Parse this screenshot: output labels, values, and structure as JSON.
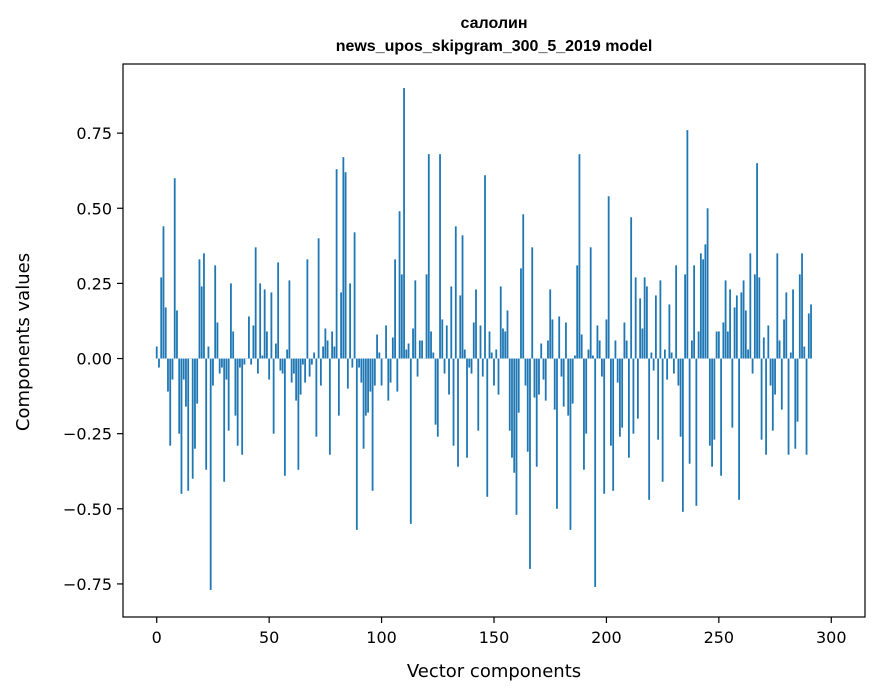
{
  "chart_data": {
    "type": "bar",
    "title": "салолин",
    "subtitle": "news_upos_skipgram_300_5_2019 model",
    "xlabel": "Vector components",
    "ylabel": "Components values",
    "xlim": [
      -15,
      315
    ],
    "ylim": [
      -0.86,
      0.98
    ],
    "x_ticks": [
      0,
      50,
      100,
      150,
      200,
      250,
      300
    ],
    "x_tick_labels": [
      "0",
      "50",
      "100",
      "150",
      "200",
      "250",
      "300"
    ],
    "y_ticks": [
      -0.75,
      -0.5,
      -0.25,
      0.0,
      0.25,
      0.5,
      0.75
    ],
    "y_tick_labels": [
      "−0.75",
      "−0.50",
      "−0.25",
      "0.00",
      "0.25",
      "0.50",
      "0.75"
    ],
    "grid": false,
    "bar_color": "#1f77b4",
    "values": [
      0.04,
      -0.03,
      0.27,
      0.44,
      0.17,
      -0.11,
      -0.29,
      -0.07,
      0.6,
      0.16,
      -0.25,
      -0.45,
      -0.07,
      -0.16,
      -0.44,
      0.0,
      -0.4,
      -0.3,
      -0.15,
      0.33,
      0.24,
      0.35,
      -0.37,
      0.04,
      -0.77,
      -0.09,
      0.31,
      0.12,
      -0.05,
      -0.03,
      -0.41,
      -0.07,
      -0.24,
      0.25,
      0.09,
      -0.19,
      -0.29,
      -0.03,
      -0.32,
      -0.02,
      0.0,
      0.14,
      -0.02,
      0.11,
      0.37,
      -0.05,
      0.25,
      0.01,
      0.23,
      0.09,
      -0.07,
      0.22,
      -0.25,
      0.05,
      0.32,
      -0.04,
      -0.05,
      -0.39,
      0.03,
      0.26,
      -0.08,
      -0.05,
      -0.14,
      -0.37,
      -0.12,
      -0.02,
      -0.08,
      0.33,
      -0.06,
      -0.02,
      0.02,
      -0.26,
      0.4,
      -0.09,
      0.04,
      0.1,
      0.06,
      -0.32,
      0.09,
      0.04,
      0.63,
      -0.19,
      0.22,
      0.67,
      0.62,
      -0.1,
      0.25,
      -0.03,
      0.42,
      -0.57,
      -0.03,
      -0.08,
      -0.3,
      -0.19,
      -0.18,
      -0.11,
      -0.44,
      -0.09,
      0.08,
      0.02,
      -0.09,
      0.0,
      0.11,
      -0.14,
      -0.08,
      0.07,
      0.33,
      -0.11,
      0.49,
      0.28,
      0.9,
      0.03,
      0.05,
      -0.55,
      0.1,
      0.26,
      -0.06,
      0.06,
      0.06,
      0.0,
      0.28,
      0.68,
      0.09,
      0.02,
      -0.22,
      -0.26,
      0.68,
      0.13,
      -0.05,
      0.11,
      -0.12,
      0.24,
      -0.29,
      0.44,
      -0.36,
      0.21,
      0.41,
      0.03,
      -0.33,
      -0.03,
      -0.05,
      0.12,
      0.23,
      -0.24,
      0.11,
      -0.06,
      0.61,
      -0.46,
      0.09,
      0.02,
      -0.09,
      0.03,
      -0.12,
      0.24,
      0.1,
      0.09,
      0.16,
      -0.24,
      -0.33,
      -0.38,
      -0.52,
      -0.18,
      0.3,
      0.48,
      -0.09,
      -0.31,
      -0.7,
      0.37,
      -0.13,
      -0.36,
      -0.12,
      0.05,
      -0.07,
      -0.14,
      0.06,
      0.23,
      0.13,
      -0.17,
      -0.5,
      0.14,
      -0.06,
      -0.16,
      0.12,
      -0.19,
      -0.57,
      -0.15,
      0.01,
      0.31,
      0.68,
      0.08,
      -0.37,
      -0.25,
      0.03,
      0.37,
      0.01,
      -0.76,
      0.11,
      0.06,
      -0.06,
      -0.45,
      0.13,
      0.54,
      -0.29,
      -0.44,
      0.06,
      -0.08,
      -0.26,
      -0.23,
      0.12,
      0.06,
      -0.33,
      0.47,
      -0.25,
      0.27,
      -0.2,
      0.2,
      0.1,
      0.27,
      0.24,
      -0.47,
      0.02,
      -0.04,
      0.21,
      -0.27,
      0.26,
      -0.41,
      0.03,
      -0.07,
      0.18,
      0.02,
      -0.05,
      0.31,
      -0.09,
      -0.26,
      -0.51,
      0.28,
      0.76,
      -0.35,
      0.06,
      0.31,
      -0.49,
      0.09,
      0.35,
      0.33,
      0.38,
      0.5,
      -0.29,
      -0.36,
      -0.27,
      0.09,
      0.09,
      -0.39,
      0.12,
      0.26,
      0.09,
      0.23,
      -0.23,
      0.17,
      0.21,
      -0.47,
      0.22,
      0.26,
      0.16,
      0.03,
      0.35,
      -0.05,
      0.28,
      0.65,
      0.27,
      -0.27,
      0.07,
      -0.32,
      0.11,
      -0.09,
      -0.24,
      -0.12,
      0.35,
      0.06,
      -0.17,
      0.13,
      0.22,
      -0.32,
      0.02,
      0.23,
      -0.3,
      -0.21,
      0.28,
      0.35,
      0.04,
      -0.32,
      0.15,
      0.18
    ]
  }
}
